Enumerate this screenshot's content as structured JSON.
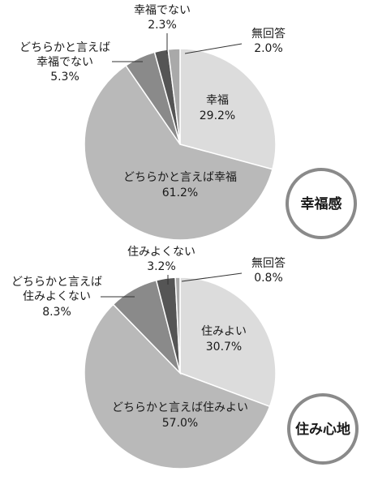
{
  "chart_data": [
    {
      "type": "pie",
      "title": "幸福感",
      "slices": [
        {
          "label": "幸福",
          "value": 29.2,
          "value_text": "29.2%",
          "color": "#dcdcdc"
        },
        {
          "label": "どちらかと言えば幸福",
          "value": 61.2,
          "value_text": "61.2%",
          "color": "#b9b9b9"
        },
        {
          "label": "どちらかと言えば幸福でない",
          "label_lines": [
            "どちらかと言えば",
            "幸福でない"
          ],
          "value": 5.3,
          "value_text": "5.3%",
          "color": "#8a8a8a"
        },
        {
          "label": "幸福でない",
          "value": 2.3,
          "value_text": "2.3%",
          "color": "#555555"
        },
        {
          "label": "無回答",
          "value": 2.0,
          "value_text": "2.0%",
          "color": "#a9a9a9"
        }
      ]
    },
    {
      "type": "pie",
      "title": "住み心地",
      "slices": [
        {
          "label": "住みよい",
          "value": 30.7,
          "value_text": "30.7%",
          "color": "#dcdcdc"
        },
        {
          "label": "どちらかと言えば住みよい",
          "value": 57.0,
          "value_text": "57.0%",
          "color": "#b9b9b9"
        },
        {
          "label": "どちらかと言えば住みよくない",
          "label_lines": [
            "どちらかと言えば",
            "住みよくない"
          ],
          "value": 8.3,
          "value_text": "8.3%",
          "color": "#8a8a8a"
        },
        {
          "label": "住みよくない",
          "value": 3.2,
          "value_text": "3.2%",
          "color": "#555555"
        },
        {
          "label": "無回答",
          "value": 0.8,
          "value_text": "0.8%",
          "color": "#a9a9a9"
        }
      ]
    }
  ]
}
